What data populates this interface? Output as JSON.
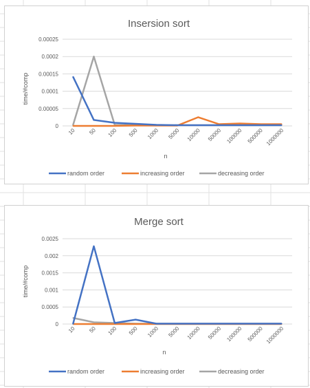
{
  "chart_data": [
    {
      "type": "line",
      "title": "Insersion sort",
      "xlabel": "n",
      "ylabel": "time/#comp",
      "categories": [
        "10",
        "50",
        "100",
        "500",
        "1000",
        "5000",
        "10000",
        "50000",
        "100000",
        "500000",
        "1000000"
      ],
      "ylim": [
        0,
        0.00025
      ],
      "yticks": [
        "0",
        "0.00005",
        "0.0001",
        "0.00015",
        "0.0002",
        "0.00025"
      ],
      "grid": true,
      "legend_position": "bottom",
      "series": [
        {
          "name": "random order",
          "color": "#4472c4",
          "values": [
            0.000142,
            1.7e-05,
            9e-06,
            6e-06,
            3e-06,
            2e-06,
            2e-06,
            2e-06,
            2e-06,
            2e-06,
            2e-06
          ]
        },
        {
          "name": "increasing order",
          "color": "#ed7d31",
          "values": [
            0,
            0,
            0,
            1e-06,
            1e-06,
            1e-06,
            2.5e-05,
            5e-06,
            7e-06,
            5e-06,
            5e-06
          ]
        },
        {
          "name": "decreasing order",
          "color": "#a5a5a5",
          "values": [
            2e-06,
            0.0002,
            3e-06,
            2e-06,
            2e-06,
            2e-06,
            2e-06,
            2e-06,
            2e-06,
            2e-06,
            2e-06
          ]
        }
      ]
    },
    {
      "type": "line",
      "title": "Merge sort",
      "xlabel": "n",
      "ylabel": "time/#comp",
      "categories": [
        "10",
        "50",
        "100",
        "500",
        "1000",
        "5000",
        "10000",
        "50000",
        "100000",
        "500000",
        "1000000"
      ],
      "ylim": [
        0,
        0.0025
      ],
      "yticks": [
        "0",
        "0.0005",
        "0.001",
        "0.0015",
        "0.002",
        "0.0025"
      ],
      "grid": true,
      "legend_position": "bottom",
      "series": [
        {
          "name": "random order",
          "color": "#4472c4",
          "values": [
            0,
            0.00228,
            3e-05,
            0.00013,
            1e-05,
            1e-05,
            1e-05,
            1e-05,
            1e-05,
            1e-05,
            1e-05
          ]
        },
        {
          "name": "increasing order",
          "color": "#ed7d31",
          "values": [
            0,
            0,
            0,
            0,
            0,
            0,
            0,
            0,
            0,
            0,
            0
          ]
        },
        {
          "name": "decreasing order",
          "color": "#a5a5a5",
          "values": [
            0.00018,
            5e-05,
            3e-05,
            1e-05,
            1e-05,
            1e-05,
            1e-05,
            1e-05,
            1e-05,
            1e-05,
            1e-05
          ]
        }
      ]
    }
  ]
}
